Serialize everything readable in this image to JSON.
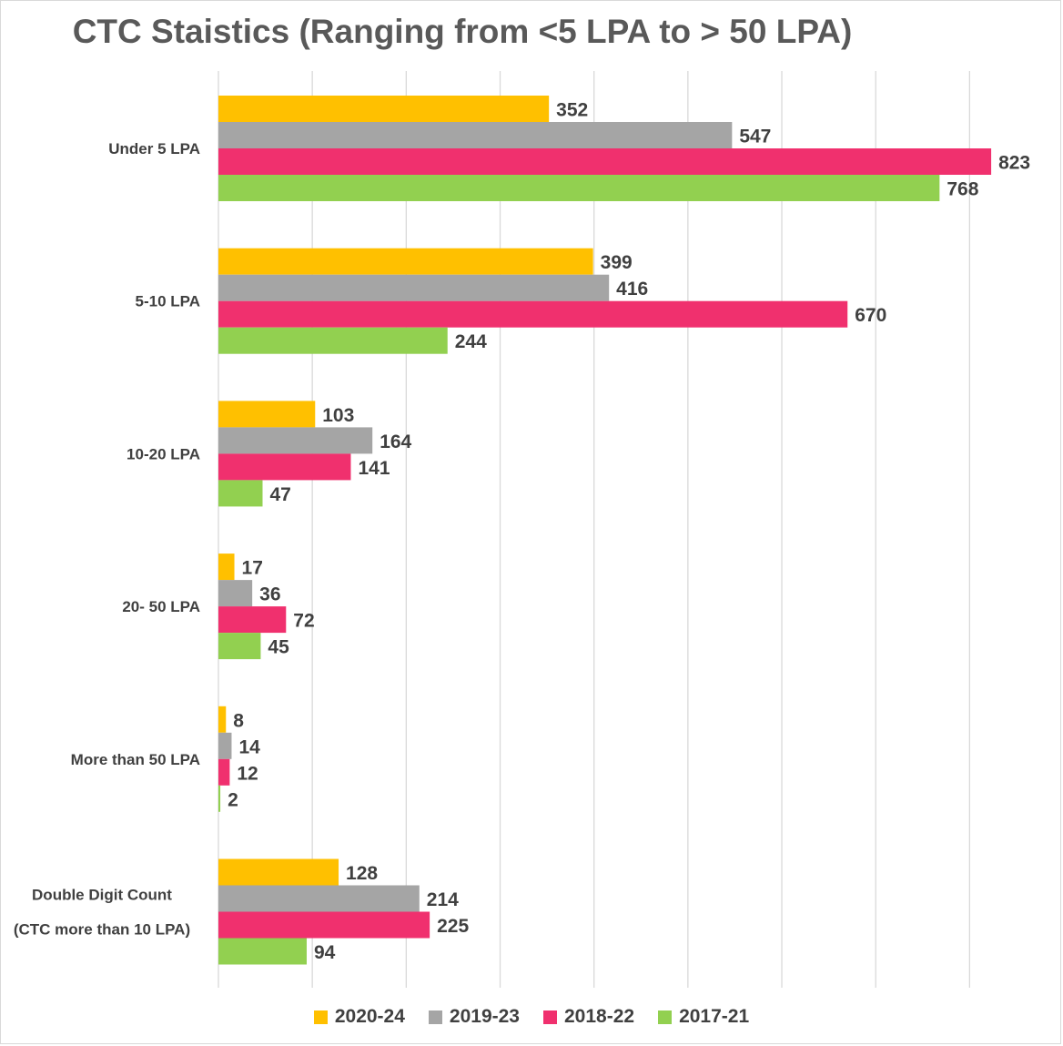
{
  "chart_data": {
    "type": "bar",
    "orientation": "horizontal",
    "title": "CTC Staistics (Ranging from <5 LPA to > 50 LPA)",
    "categories": [
      [
        "Under 5 LPA"
      ],
      [
        "5-10 LPA"
      ],
      [
        "10-20 LPA"
      ],
      [
        "20- 50 LPA"
      ],
      [
        "More than 50 LPA"
      ],
      [
        "Double Digit Count",
        "(CTC more than 10 LPA)"
      ]
    ],
    "series": [
      {
        "name": "2020-24",
        "color": "#FFC000",
        "values": [
          352,
          399,
          103,
          17,
          8,
          128
        ]
      },
      {
        "name": "2019-23",
        "color": "#A5A5A5",
        "values": [
          547,
          416,
          164,
          36,
          14,
          214
        ]
      },
      {
        "name": "2018-22",
        "color": "#F0306E",
        "values": [
          823,
          670,
          141,
          72,
          12,
          225
        ]
      },
      {
        "name": "2017-21",
        "color": "#92D050",
        "values": [
          768,
          244,
          47,
          45,
          2,
          94
        ]
      }
    ],
    "xlim": [
      0,
      800
    ],
    "x_tick_step": 100,
    "grid": true,
    "legend_position": "bottom",
    "data_labels": true
  }
}
